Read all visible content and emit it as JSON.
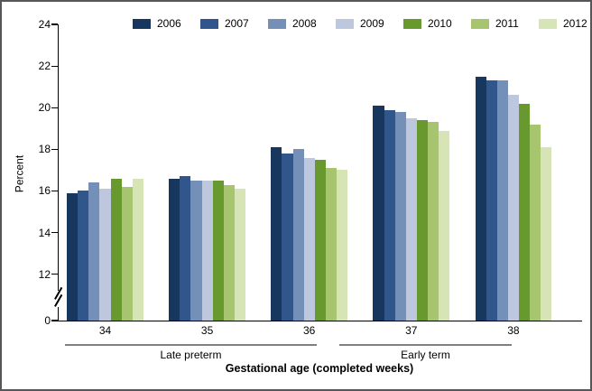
{
  "chart_data": {
    "type": "bar",
    "title": "",
    "ylabel": "Percent",
    "xlabel": "Gestational age (completed weeks)",
    "categories": [
      "34",
      "35",
      "36",
      "37",
      "38"
    ],
    "category_groups": [
      {
        "label": "Late preterm",
        "categories": [
          "34",
          "35",
          "36"
        ]
      },
      {
        "label": "Early term",
        "categories": [
          "37",
          "38"
        ]
      }
    ],
    "series": [
      {
        "name": "2006",
        "color": "#17375E",
        "values": [
          15.9,
          16.6,
          18.1,
          20.1,
          21.5
        ]
      },
      {
        "name": "2007",
        "color": "#31568C",
        "values": [
          16.0,
          16.7,
          17.8,
          19.9,
          21.3
        ]
      },
      {
        "name": "2008",
        "color": "#7590B8",
        "values": [
          16.4,
          16.5,
          18.0,
          19.8,
          21.3
        ]
      },
      {
        "name": "2009",
        "color": "#BDC8DE",
        "values": [
          16.1,
          16.5,
          17.6,
          19.5,
          20.6
        ]
      },
      {
        "name": "2010",
        "color": "#68992F",
        "values": [
          16.6,
          16.5,
          17.5,
          19.4,
          20.2
        ]
      },
      {
        "name": "2011",
        "color": "#A7C46F",
        "values": [
          16.2,
          16.3,
          17.1,
          19.3,
          19.2
        ]
      },
      {
        "name": "2012",
        "color": "#D7E4B6",
        "values": [
          16.6,
          16.1,
          17.0,
          18.9,
          18.1
        ]
      }
    ],
    "y_axis": {
      "ticks": [
        0,
        12,
        14,
        16,
        18,
        20,
        22,
        24
      ],
      "ylim": [
        0,
        24
      ],
      "axis_break": "between 0 and 12",
      "grid": "off"
    },
    "legend_position": "top"
  }
}
